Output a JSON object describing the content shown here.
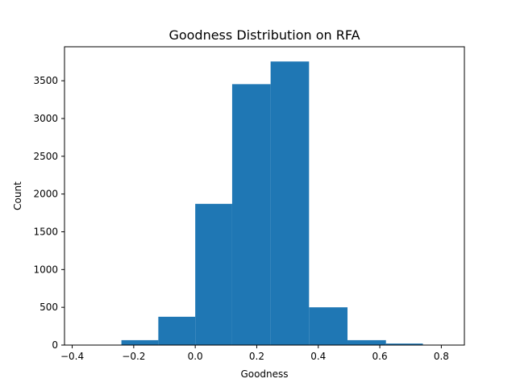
{
  "chart_data": {
    "type": "bar",
    "title": "Goodness Distribution on RFA",
    "xlabel": "Goodness",
    "ylabel": "Count",
    "xlim": [
      -0.425,
      0.875
    ],
    "ylim": [
      0,
      3950
    ],
    "xticks": [
      -0.4,
      -0.2,
      0.0,
      0.2,
      0.4,
      0.6,
      0.8
    ],
    "xtick_labels": [
      "−0.4",
      "−0.2",
      "0.0",
      "0.2",
      "0.4",
      "0.6",
      "0.8"
    ],
    "yticks": [
      0,
      500,
      1000,
      1500,
      2000,
      2500,
      3000,
      3500
    ],
    "ytick_labels": [
      "0",
      "500",
      "1000",
      "1500",
      "2000",
      "2500",
      "3000",
      "3500"
    ],
    "grid": false,
    "bar_color": "#1f77b4",
    "bins": [
      {
        "x0": -0.36,
        "x1": -0.24,
        "value": 2
      },
      {
        "x0": -0.24,
        "x1": -0.12,
        "value": 65
      },
      {
        "x0": -0.12,
        "x1": 0.0,
        "value": 375
      },
      {
        "x0": 0.0,
        "x1": 0.12,
        "value": 1870
      },
      {
        "x0": 0.12,
        "x1": 0.245,
        "value": 3455
      },
      {
        "x0": 0.245,
        "x1": 0.37,
        "value": 3755
      },
      {
        "x0": 0.37,
        "x1": 0.495,
        "value": 500
      },
      {
        "x0": 0.495,
        "x1": 0.62,
        "value": 65
      },
      {
        "x0": 0.62,
        "x1": 0.74,
        "value": 20
      },
      {
        "x0": 0.74,
        "x1": 0.86,
        "value": 2
      }
    ]
  }
}
